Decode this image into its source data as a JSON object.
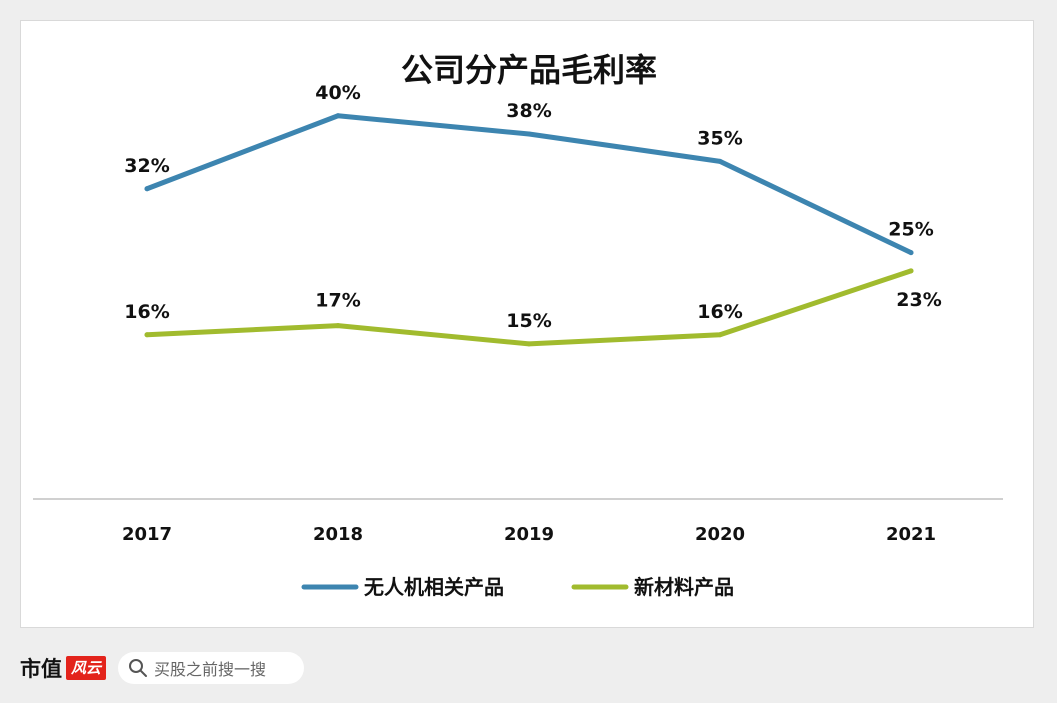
{
  "chart_data": {
    "type": "line",
    "title": "公司分产品毛利率",
    "categories": [
      "2017",
      "2018",
      "2019",
      "2020",
      "2021"
    ],
    "series": [
      {
        "name": "无人机相关产品",
        "color": "#3d85b0",
        "values": [
          32,
          40,
          38,
          35,
          25
        ],
        "labels": [
          "32%",
          "40%",
          "38%",
          "35%",
          "25%"
        ]
      },
      {
        "name": "新材料产品",
        "color": "#a1bb2e",
        "values": [
          16,
          17,
          15,
          16,
          23
        ],
        "labels": [
          "16%",
          "17%",
          "15%",
          "16%",
          "23%"
        ]
      }
    ],
    "ylim": [
      -2,
      46
    ],
    "grid": false,
    "legend_position": "bottom"
  },
  "footer": {
    "brand": "市值",
    "brand_logo": "风云",
    "search_icon": "search-icon",
    "search_text": "买股之前搜一搜"
  }
}
